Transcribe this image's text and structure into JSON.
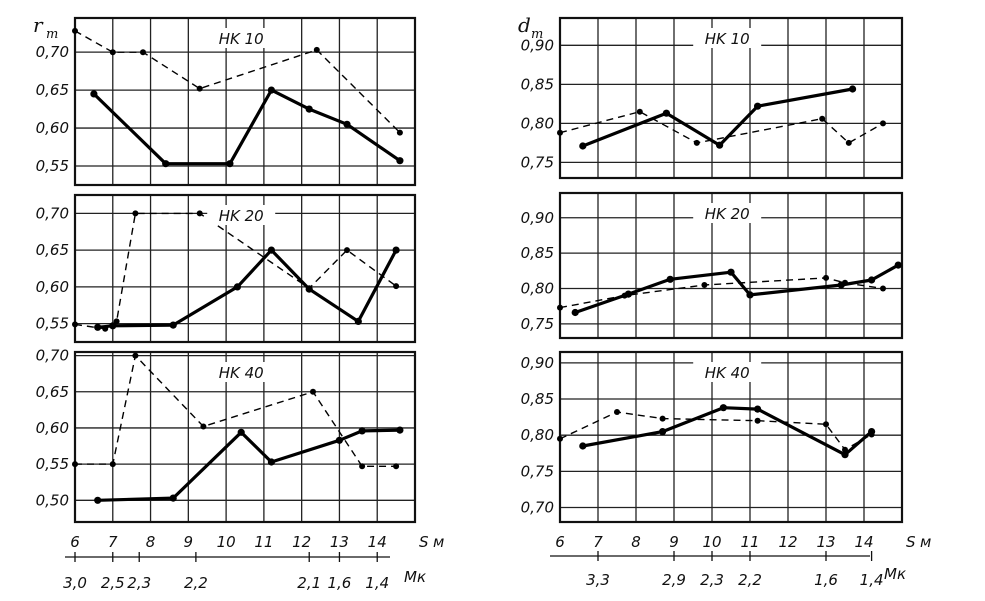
{
  "chart_data": [
    {
      "type": "line",
      "group": "left",
      "ylabel": "r",
      "ylabel_sub": "m",
      "xlabel": "S",
      "xlabel_unit": "м",
      "xlabel2": "Мк",
      "x_ticks": [
        "6",
        "7",
        "8",
        "9",
        "10",
        "11",
        "12",
        "13",
        "14"
      ],
      "x_secondary_ticks": [
        {
          "x": 6,
          "label": "3,0"
        },
        {
          "x": 7,
          "label": "2,5"
        },
        {
          "x": 7.7,
          "label": "2,3"
        },
        {
          "x": 9.2,
          "label": "2,2"
        },
        {
          "x": 12.2,
          "label": "2,1"
        },
        {
          "x": 13,
          "label": "1,6"
        },
        {
          "x": 14,
          "label": "1,4"
        }
      ],
      "xlim": [
        6,
        15
      ],
      "panels": [
        {
          "title": "HK 10",
          "ylim": [
            0.525,
            0.745
          ],
          "y_ticks": [
            "0,70",
            "0,65",
            "0,60",
            "0,55"
          ],
          "y_tick_values": [
            0.7,
            0.65,
            0.6,
            0.55
          ],
          "series": [
            {
              "style": "solid",
              "x": [
                6.5,
                8.4,
                10.1,
                11.2,
                12.2,
                13.2,
                14.6
              ],
              "y": [
                0.645,
                0.553,
                0.553,
                0.65,
                0.625,
                0.605,
                0.557
              ]
            },
            {
              "style": "dashed",
              "x": [
                6.0,
                7.0,
                7.8,
                9.3,
                12.4,
                14.6
              ],
              "y": [
                0.728,
                0.7,
                0.7,
                0.652,
                0.703,
                0.594
              ]
            }
          ]
        },
        {
          "title": "HK 20",
          "ylim": [
            0.525,
            0.725
          ],
          "y_ticks": [
            "0,70",
            "0,65",
            "0,60",
            "0,55"
          ],
          "y_tick_values": [
            0.7,
            0.65,
            0.6,
            0.55
          ],
          "series": [
            {
              "style": "solid",
              "x": [
                6.6,
                7.0,
                8.6,
                10.3,
                11.2,
                12.2,
                13.5,
                14.5
              ],
              "y": [
                0.545,
                0.547,
                0.548,
                0.6,
                0.65,
                0.597,
                0.553,
                0.65
              ]
            },
            {
              "style": "dashed",
              "x": [
                6.0,
                6.8,
                7.1,
                7.6,
                9.3,
                12.2,
                13.2,
                14.5
              ],
              "y": [
                0.549,
                0.543,
                0.553,
                0.7,
                0.7,
                0.598,
                0.65,
                0.601
              ]
            }
          ]
        },
        {
          "title": "HK 40",
          "ylim": [
            0.47,
            0.705
          ],
          "y_ticks": [
            "0,70",
            "0,65",
            "0,60",
            "0,55",
            "0,50"
          ],
          "y_tick_values": [
            0.7,
            0.65,
            0.6,
            0.55,
            0.5
          ],
          "series": [
            {
              "style": "solid",
              "x": [
                6.6,
                8.6,
                10.4,
                11.2,
                13.0,
                13.6,
                14.6
              ],
              "y": [
                0.5,
                0.503,
                0.594,
                0.553,
                0.583,
                0.596,
                0.597
              ]
            },
            {
              "style": "dashed",
              "x": [
                6.0,
                7.0,
                7.6,
                9.4,
                12.3,
                13.6,
                14.5
              ],
              "y": [
                0.55,
                0.55,
                0.7,
                0.602,
                0.65,
                0.547,
                0.547
              ]
            }
          ]
        }
      ]
    },
    {
      "type": "line",
      "group": "right",
      "ylabel": "d",
      "ylabel_sub": "m",
      "xlabel": "S",
      "xlabel_unit": "м",
      "xlabel2": "Мк",
      "x_ticks": [
        "6",
        "7",
        "8",
        "9",
        "10",
        "11",
        "12",
        "13",
        "14"
      ],
      "x_secondary_ticks": [
        {
          "x": 7,
          "label": "3,3"
        },
        {
          "x": 9,
          "label": "2,9"
        },
        {
          "x": 10,
          "label": "2,3"
        },
        {
          "x": 11,
          "label": "2,2"
        },
        {
          "x": 13,
          "label": "1,6"
        },
        {
          "x": 14.2,
          "label": "1,4"
        }
      ],
      "xlim": [
        6,
        15
      ],
      "panels": [
        {
          "title": "HK 10",
          "ylim": [
            0.73,
            0.935
          ],
          "y_ticks": [
            "0,90",
            "0,85",
            "0,80",
            "0,75"
          ],
          "y_tick_values": [
            0.9,
            0.85,
            0.8,
            0.75
          ],
          "series": [
            {
              "style": "solid",
              "x": [
                6.6,
                8.8,
                10.2,
                11.2,
                13.7
              ],
              "y": [
                0.771,
                0.813,
                0.772,
                0.822,
                0.844
              ]
            },
            {
              "style": "dashed",
              "x": [
                6.0,
                8.1,
                9.6,
                12.9,
                13.6,
                14.5
              ],
              "y": [
                0.788,
                0.815,
                0.775,
                0.806,
                0.775,
                0.8
              ]
            }
          ]
        },
        {
          "title": "HK 20",
          "ylim": [
            0.73,
            0.935
          ],
          "y_ticks": [
            "0,90",
            "0,85",
            "0,80",
            "0,75"
          ],
          "y_tick_values": [
            0.9,
            0.85,
            0.8,
            0.75
          ],
          "series": [
            {
              "style": "solid",
              "x": [
                6.4,
                7.8,
                8.9,
                10.5,
                11.0,
                13.4,
                14.2,
                14.9
              ],
              "y": [
                0.766,
                0.792,
                0.813,
                0.823,
                0.791,
                0.805,
                0.812,
                0.833
              ]
            },
            {
              "style": "dashed",
              "x": [
                6.0,
                7.7,
                9.8,
                13.0,
                13.5,
                14.5
              ],
              "y": [
                0.773,
                0.79,
                0.805,
                0.815,
                0.808,
                0.8
              ]
            }
          ]
        },
        {
          "title": "HK 40",
          "ylim": [
            0.68,
            0.915
          ],
          "y_ticks": [
            "0,90",
            "0,85",
            "0,80",
            "0,75",
            "0,70"
          ],
          "y_tick_values": [
            0.9,
            0.85,
            0.8,
            0.75,
            0.7
          ],
          "series": [
            {
              "style": "solid",
              "x": [
                6.6,
                8.7,
                10.3,
                11.2,
                13.5,
                14.2
              ],
              "y": [
                0.785,
                0.805,
                0.838,
                0.836,
                0.773,
                0.805
              ]
            },
            {
              "style": "dashed",
              "x": [
                6.0,
                7.5,
                8.7,
                11.2,
                13.0,
                13.5,
                14.2
              ],
              "y": [
                0.795,
                0.832,
                0.823,
                0.82,
                0.815,
                0.78,
                0.801
              ]
            }
          ]
        }
      ]
    }
  ]
}
